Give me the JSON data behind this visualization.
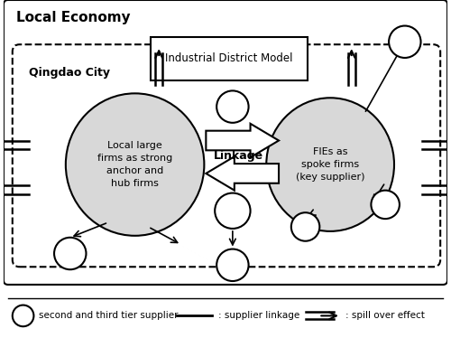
{
  "title": "Local Economy",
  "subtitle": "Qingdao City",
  "box_label": "Industrial District Model",
  "left_ellipse_label": "Local large\nfirms as strong\nanchor and\nhub firms",
  "right_ellipse_label": "FIEs as\nspoke firms\n(key supplier)",
  "center_label": "Linkage",
  "legend_circle": "second and third tier supplier",
  "legend_line": ": supplier linkage",
  "legend_arrow": ": spill over effect",
  "bg_color": "#ffffff",
  "border_color": "#000000",
  "ellipse_fill": "#d8d8d8"
}
